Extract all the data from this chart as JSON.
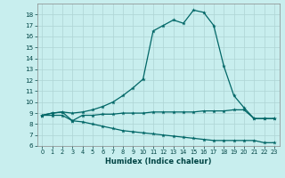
{
  "title": "",
  "xlabel": "Humidex (Indice chaleur)",
  "ylabel": "",
  "background_color": "#c8eeee",
  "grid_color": "#aed4d4",
  "line_color": "#006666",
  "xlim": [
    -0.5,
    23.5
  ],
  "ylim": [
    6,
    19
  ],
  "yticks": [
    6,
    7,
    8,
    9,
    10,
    11,
    12,
    13,
    14,
    15,
    16,
    17,
    18
  ],
  "xticks": [
    0,
    1,
    2,
    3,
    4,
    5,
    6,
    7,
    8,
    9,
    10,
    11,
    12,
    13,
    14,
    15,
    16,
    17,
    18,
    19,
    20,
    21,
    22,
    23
  ],
  "line1_x": [
    0,
    1,
    2,
    3,
    4,
    5,
    6,
    7,
    8,
    9,
    10,
    11,
    12,
    13,
    14,
    15,
    16,
    17,
    18,
    19,
    20,
    21,
    22,
    23
  ],
  "line1_y": [
    8.8,
    9.0,
    9.1,
    9.0,
    9.1,
    9.3,
    9.6,
    10.0,
    10.6,
    11.3,
    12.1,
    16.5,
    17.0,
    17.5,
    17.2,
    18.4,
    18.2,
    17.0,
    13.3,
    10.6,
    9.5,
    8.5,
    8.5,
    8.5
  ],
  "line2_x": [
    0,
    1,
    2,
    3,
    4,
    5,
    6,
    7,
    8,
    9,
    10,
    11,
    12,
    13,
    14,
    15,
    16,
    17,
    18,
    19,
    20,
    21,
    22,
    23
  ],
  "line2_y": [
    8.8,
    9.0,
    9.1,
    8.3,
    8.8,
    8.8,
    8.9,
    8.9,
    9.0,
    9.0,
    9.0,
    9.1,
    9.1,
    9.1,
    9.1,
    9.1,
    9.2,
    9.2,
    9.2,
    9.3,
    9.3,
    8.5,
    8.5,
    8.5
  ],
  "line3_x": [
    0,
    1,
    2,
    3,
    4,
    5,
    6,
    7,
    8,
    9,
    10,
    11,
    12,
    13,
    14,
    15,
    16,
    17,
    18,
    19,
    20,
    21,
    22,
    23
  ],
  "line3_y": [
    8.8,
    8.8,
    8.8,
    8.3,
    8.2,
    8.0,
    7.8,
    7.6,
    7.4,
    7.3,
    7.2,
    7.1,
    7.0,
    6.9,
    6.8,
    6.7,
    6.6,
    6.5,
    6.5,
    6.5,
    6.5,
    6.5,
    6.3,
    6.3
  ]
}
